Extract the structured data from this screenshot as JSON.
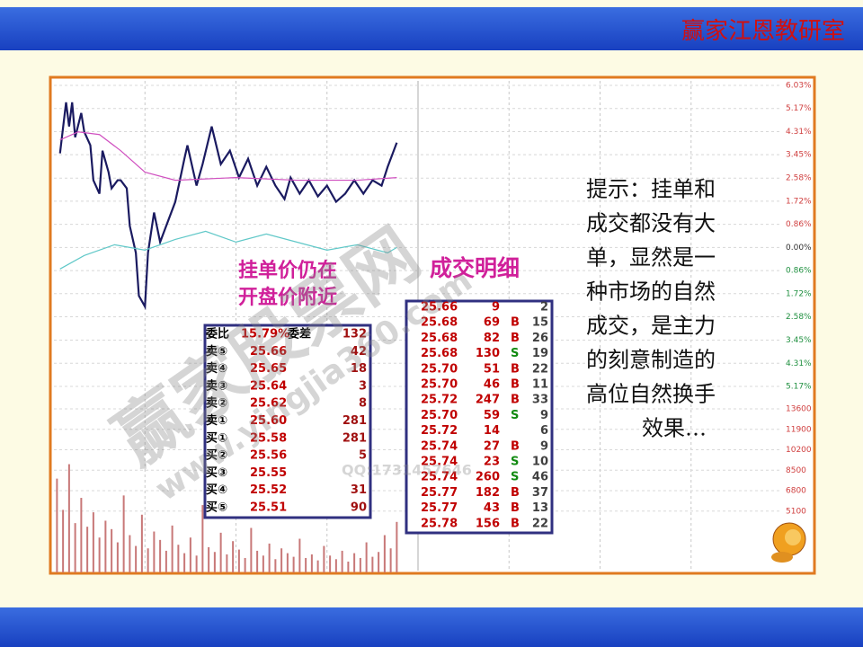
{
  "header": {
    "title": "赢家江恩教研室"
  },
  "chart_data": {
    "type": "line",
    "xlim": [
      0,
      240
    ],
    "ylim": [
      -5.17,
      6.03
    ],
    "yticks": [
      {
        "value": 6.03,
        "label": "6.03%"
      },
      {
        "value": 5.17,
        "label": "5.17%"
      },
      {
        "value": 4.31,
        "label": "4.31%"
      },
      {
        "value": 3.45,
        "label": "3.45%"
      },
      {
        "value": 2.58,
        "label": "2.58%"
      },
      {
        "value": 1.72,
        "label": "1.72%"
      },
      {
        "value": 0.86,
        "label": "0.86%"
      },
      {
        "value": 0,
        "label": "0.00%"
      },
      {
        "value": -0.86,
        "label": "0.86%"
      },
      {
        "value": -1.72,
        "label": "1.72%"
      },
      {
        "value": -2.58,
        "label": "2.58%"
      },
      {
        "value": -3.45,
        "label": "3.45%"
      },
      {
        "value": -4.31,
        "label": "4.31%"
      },
      {
        "value": -5.17,
        "label": "5.17%"
      }
    ],
    "y2lim": [
      0,
      13600
    ],
    "y2ticks": [
      13600,
      11900,
      10200,
      8500,
      6800,
      5100
    ],
    "grid": true,
    "series": [
      {
        "color": "#1a1a60",
        "x": [
          2,
          4,
          5,
          6,
          7,
          9,
          10,
          12,
          13,
          15,
          16,
          18,
          19,
          21,
          22,
          24,
          25,
          27,
          28,
          30,
          31,
          33,
          35,
          37,
          40,
          43,
          44,
          47,
          49,
          52,
          55,
          58,
          61,
          64,
          67,
          70,
          73,
          76,
          78,
          81,
          84,
          87,
          90,
          93,
          96,
          99,
          102,
          105,
          108,
          110,
          113
        ],
        "values": [
          3.5,
          5.4,
          4.5,
          5.4,
          4.1,
          5.0,
          4.3,
          3.8,
          2.5,
          2.0,
          3.6,
          2.8,
          2.2,
          2.5,
          2.5,
          2.2,
          0.8,
          -0.2,
          -1.8,
          -2.2,
          -0.2,
          1.3,
          0.2,
          0.8,
          1.7,
          3.3,
          3.8,
          2.3,
          3.1,
          4.5,
          3.1,
          3.6,
          2.6,
          3.3,
          2.3,
          3.0,
          2.3,
          1.8,
          2.6,
          2.0,
          2.5,
          1.9,
          2.3,
          1.7,
          2.0,
          2.5,
          2.0,
          2.5,
          2.3,
          3.0,
          3.9
        ]
      },
      {
        "color": "#d050c0",
        "x": [
          2,
          8,
          15,
          22,
          30,
          40,
          60,
          80,
          100,
          113
        ],
        "values": [
          4.0,
          4.3,
          4.2,
          3.6,
          2.8,
          2.5,
          2.6,
          2.5,
          2.5,
          2.6
        ]
      },
      {
        "color": "#60c8c8",
        "x": [
          2,
          10,
          20,
          30,
          40,
          50,
          60,
          70,
          80,
          90,
          100,
          110,
          113
        ],
        "values": [
          -0.8,
          -0.3,
          0.1,
          -0.1,
          0.3,
          0.6,
          0.2,
          0.5,
          0.2,
          -0.1,
          0.1,
          -0.2,
          0.0
        ]
      },
      {
        "type": "bar",
        "axis": "y2",
        "color": "#c87878",
        "x": [
          1,
          3,
          5,
          7,
          9,
          11,
          13,
          15,
          17,
          19,
          21,
          23,
          25,
          27,
          29,
          31,
          33,
          35,
          37,
          39,
          41,
          43,
          45,
          47,
          49,
          51,
          53,
          55,
          57,
          59,
          61,
          63,
          65,
          67,
          69,
          71,
          73,
          75,
          77,
          79,
          81,
          83,
          85,
          87,
          89,
          91,
          93,
          95,
          97,
          99,
          101,
          103,
          105,
          107,
          109,
          111,
          113
        ],
        "values": [
          7800,
          5200,
          9000,
          4100,
          6200,
          3800,
          5000,
          2900,
          4300,
          3600,
          2500,
          6400,
          3100,
          2200,
          4800,
          2000,
          3400,
          2700,
          1800,
          3900,
          2300,
          1600,
          2900,
          1400,
          5600,
          2100,
          1700,
          3300,
          1500,
          2600,
          1900,
          1200,
          3700,
          1800,
          1400,
          2400,
          1100,
          2000,
          1600,
          1300,
          2800,
          1200,
          1500,
          1000,
          2200,
          1400,
          1100,
          1800,
          900,
          1600,
          1200,
          2500,
          1300,
          1700,
          3100,
          2000,
          4200
        ]
      }
    ]
  },
  "order_book": {
    "title_lines": [
      "挂单价仍在",
      "开盘价附近"
    ],
    "summary": [
      "委比",
      "15.79%",
      "委差",
      "132"
    ],
    "rows": [
      [
        "卖⑤",
        "25.66",
        "42"
      ],
      [
        "卖④",
        "25.65",
        "18"
      ],
      [
        "卖③",
        "25.64",
        "3"
      ],
      [
        "卖②",
        "25.62",
        "8"
      ],
      [
        "卖①",
        "25.60",
        "281"
      ],
      [
        "买①",
        "25.58",
        "281"
      ],
      [
        "买②",
        "25.56",
        "5"
      ],
      [
        "买③",
        "25.55",
        null
      ],
      [
        "买④",
        "25.52",
        "31"
      ],
      [
        "买⑤",
        "25.51",
        "90"
      ]
    ]
  },
  "trades": {
    "title": "成交明细",
    "rows": [
      [
        "25.66",
        "9",
        null,
        "2"
      ],
      [
        "25.68",
        "69",
        "B",
        "15"
      ],
      [
        "25.68",
        "82",
        "B",
        "26"
      ],
      [
        "25.68",
        "130",
        "S",
        "19"
      ],
      [
        "25.70",
        "51",
        "B",
        "22"
      ],
      [
        "25.70",
        "46",
        "B",
        "11"
      ],
      [
        "25.72",
        "247",
        "B",
        "33"
      ],
      [
        "25.70",
        "59",
        "S",
        "9"
      ],
      [
        "25.72",
        "14",
        null,
        "6"
      ],
      [
        "25.74",
        "27",
        "B",
        "9"
      ],
      [
        "25.74",
        "23",
        "S",
        "10"
      ],
      [
        "25.74",
        "260",
        "S",
        "46"
      ],
      [
        "25.77",
        "182",
        "B",
        "37"
      ],
      [
        "25.77",
        "43",
        "B",
        "13"
      ],
      [
        "25.78",
        "156",
        "B",
        "22"
      ]
    ]
  },
  "tip": {
    "lines": [
      "提示：挂单和",
      "成交都没有大",
      "单，显然是一",
      "种市场的自然",
      "成交，是主力",
      "的刻意制造的",
      "高位自然换手",
      "效果…"
    ]
  },
  "watermarks": [
    "赢家股票网",
    "www.yingjia360.com",
    "QQ:1731457646"
  ]
}
